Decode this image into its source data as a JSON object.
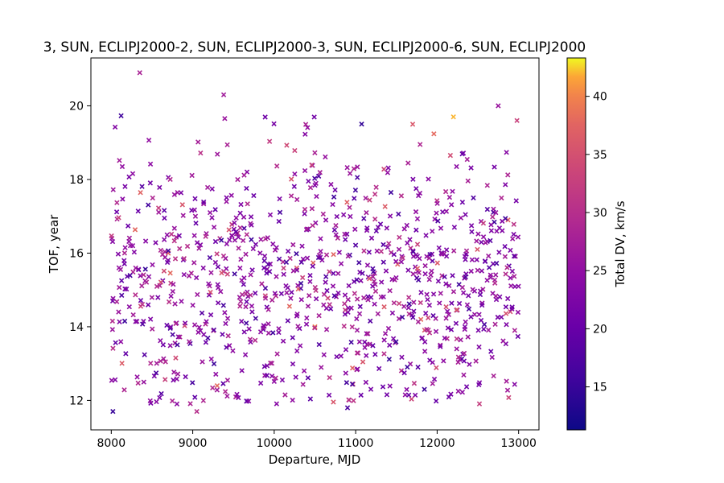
{
  "chart_data": {
    "type": "scatter",
    "title": "3, SUN, ECLIPJ2000-2, SUN, ECLIPJ2000-3, SUN, ECLIPJ2000-6, SUN, ECLIPJ2000",
    "xlabel": "Departure, MJD",
    "ylabel": "TOF, year",
    "xlim": [
      7750,
      13250
    ],
    "ylim": [
      11.2,
      21.3
    ],
    "xticks": [
      "8000",
      "9000",
      "10000",
      "11000",
      "12000",
      "13000"
    ],
    "yticks": [
      "12",
      "14",
      "16",
      "18",
      "20"
    ],
    "marker": "x",
    "grid": false,
    "colorbar": {
      "label": "Total DV, km/s",
      "colormap": "plasma",
      "range": [
        11.3,
        43.3
      ],
      "ticks": [
        "15",
        "20",
        "25",
        "30",
        "35",
        "40"
      ]
    },
    "points_note": "≈1000 points, TOF 11.6–21.0 yr, departure 8000–13000 MJD",
    "sample_points": [
      {
        "x": 8020,
        "y": 11.7,
        "c": 15
      },
      {
        "x": 8350,
        "y": 20.9,
        "c": 28
      },
      {
        "x": 9380,
        "y": 20.3,
        "c": 27
      },
      {
        "x": 9300,
        "y": 12.4,
        "c": 38
      },
      {
        "x": 10500,
        "y": 14.0,
        "c": 40
      },
      {
        "x": 10900,
        "y": 11.8,
        "c": 17
      },
      {
        "x": 11700,
        "y": 19.5,
        "c": 36
      },
      {
        "x": 12200,
        "y": 19.7,
        "c": 42
      },
      {
        "x": 12750,
        "y": 20.0,
        "c": 26
      },
      {
        "x": 12870,
        "y": 16.9,
        "c": 37
      },
      {
        "x": 12980,
        "y": 19.6,
        "c": 33
      },
      {
        "x": 8700,
        "y": 16.0,
        "c": 37
      },
      {
        "x": 11800,
        "y": 14.2,
        "c": 38
      },
      {
        "x": 9050,
        "y": 11.7,
        "c": 30
      }
    ]
  }
}
